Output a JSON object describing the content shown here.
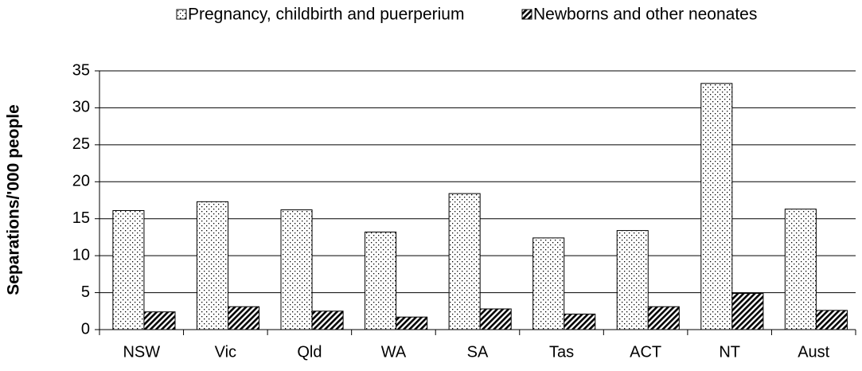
{
  "chart_data": {
    "type": "bar",
    "y_label": "Separations/'000 people",
    "categories": [
      "NSW",
      "Vic",
      "Qld",
      "WA",
      "SA",
      "Tas",
      "ACT",
      "NT",
      "Aust"
    ],
    "series": [
      {
        "name": "Pregnancy, childbirth and puerperium",
        "color": "#000000",
        "pattern": "dots",
        "values": [
          16.1,
          17.3,
          16.2,
          13.2,
          18.4,
          12.4,
          13.4,
          33.3,
          16.3
        ]
      },
      {
        "name": "Newborns and other neonates",
        "color": "#000000",
        "pattern": "hatch",
        "values": [
          2.4,
          3.1,
          2.5,
          1.7,
          2.8,
          2.1,
          3.1,
          4.9,
          2.6
        ]
      }
    ],
    "ylim": [
      0,
      35
    ],
    "yticks": [
      0,
      5,
      10,
      15,
      20,
      25,
      30,
      35
    ],
    "grid": true,
    "legend": "top"
  }
}
